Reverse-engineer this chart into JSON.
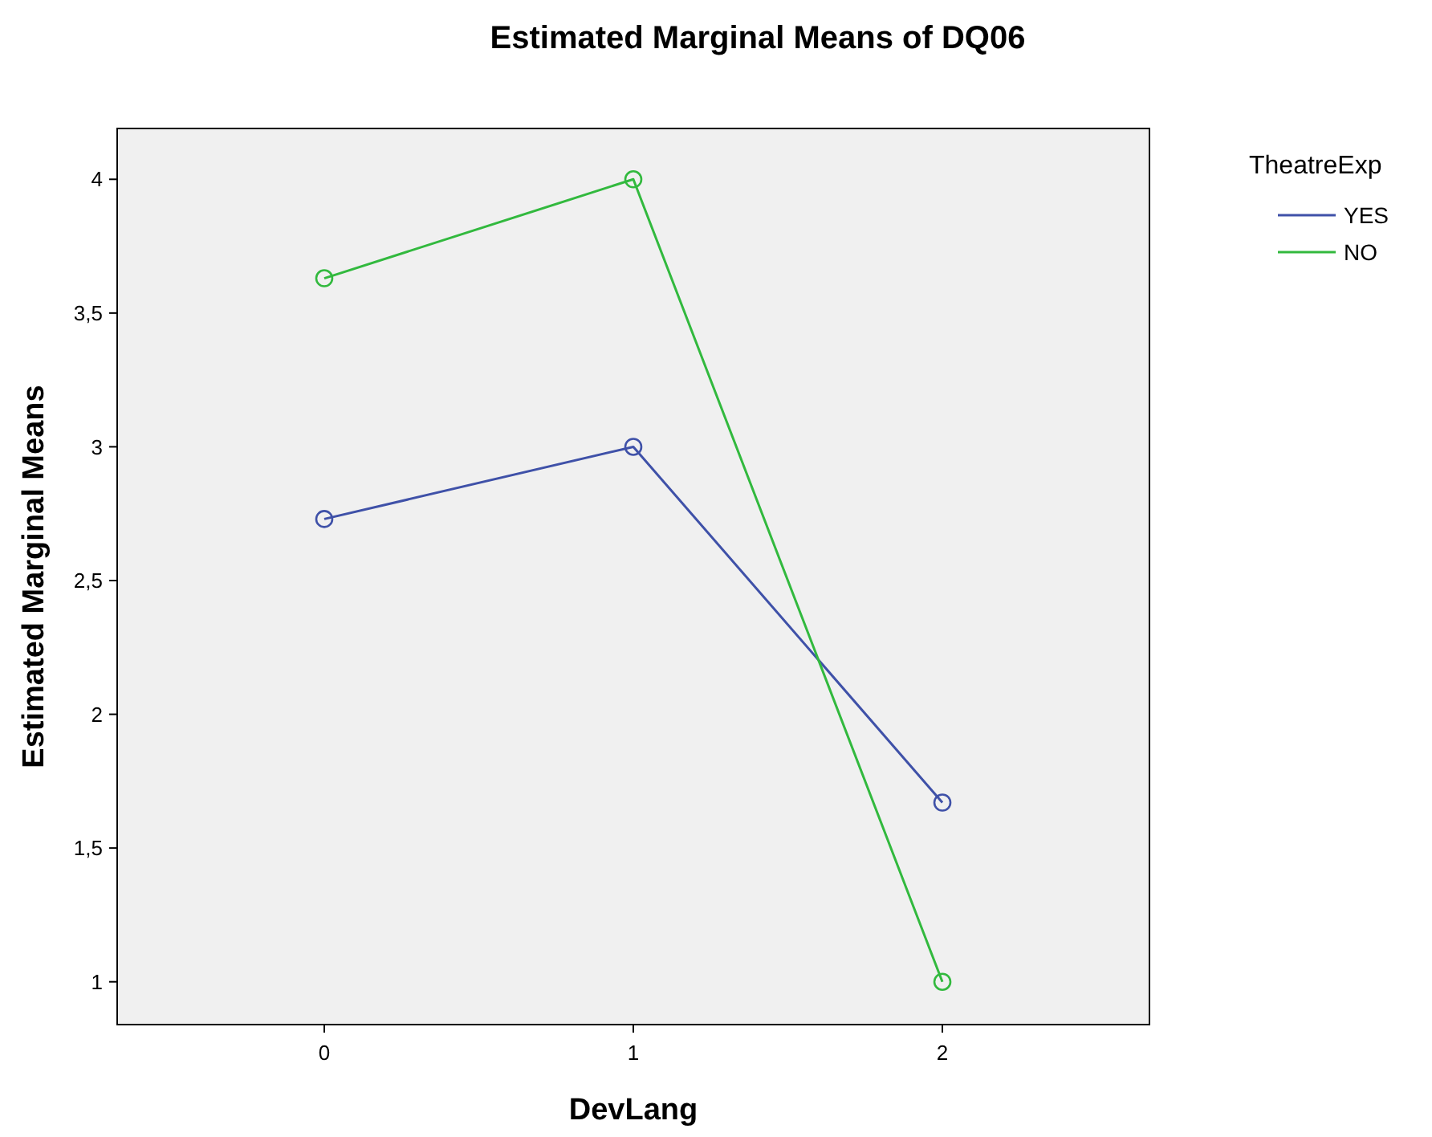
{
  "chart_data": {
    "type": "line",
    "title": "Estimated Marginal Means of DQ06",
    "xlabel": "DevLang",
    "ylabel": "Estimated Marginal Means",
    "legend_title": "TheatreExp",
    "categories": [
      "0",
      "1",
      "2"
    ],
    "series": [
      {
        "name": "YES",
        "color": "#3f51a8",
        "values": [
          2.73,
          3.0,
          1.67
        ]
      },
      {
        "name": "NO",
        "color": "#32b93e",
        "values": [
          3.63,
          4.0,
          1.0
        ]
      }
    ],
    "ylim": [
      0.84,
      4.19
    ],
    "yticks": [
      1,
      {
        "value": 1.5,
        "label": "1,5"
      },
      2,
      {
        "value": 2.5,
        "label": "2,5"
      },
      3,
      {
        "value": 3.5,
        "label": "3,5"
      },
      4
    ],
    "grid": false,
    "legend": "top right",
    "marker": "circle",
    "line_style": "solid"
  }
}
